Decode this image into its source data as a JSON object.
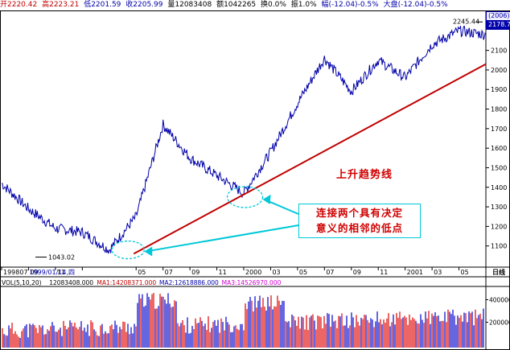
{
  "header": {
    "open": "开2220.42",
    "high": "高2223.21",
    "low": "低2201.59",
    "close": "收2205.99",
    "volume": "量12083408",
    "amount": "额1042265",
    "pct_up": "换0.0%",
    "amplitude": "振1.0%",
    "change": "幅(-12.04)-0.5%",
    "market": "大盘(-12.04)-0.5%"
  },
  "annotations": {
    "trend_title": "上升趋势线",
    "note_line1": "连接两个具有决定",
    "note_line2": "意义的相邻的低点",
    "low_label": "1043.02",
    "high_label": "2245.44",
    "last_price": "2178.77",
    "year_box": "(2006)",
    "date_label": "1999/01/14,四",
    "period": "日线"
  },
  "volume_panel": {
    "title": "VOL(5,10,20)",
    "vol": "12083408.000",
    "ma1": "MA1:14208371.000",
    "ma2": "MA2:12618886.000",
    "ma3": "MA3:14526970.000"
  },
  "colors": {
    "price_line": "#0000aa",
    "trend_line": "#c00000",
    "callout": "#00c8d8",
    "up_bar": "#e00000",
    "down_bar": "#0000cc"
  },
  "chart_data": {
    "type": "line",
    "title": "",
    "xlabel": "",
    "ylabel": "",
    "x": [
      "1998/07",
      "1998/09",
      "1998/11",
      "1999/01",
      "1999/03",
      "1999/05",
      "1999/07",
      "1999/09",
      "1999/11",
      "2000/01",
      "2000/03",
      "2000/05",
      "2000/07",
      "2000/09",
      "2000/11",
      "2001/01",
      "2001/03",
      "2001/05",
      "2001/06"
    ],
    "x_tick_labels": [
      "199807",
      "09",
      "11",
      "1999/01/14,四",
      "05",
      "07",
      "09",
      "11",
      "2000",
      "03",
      "05",
      "07",
      "09",
      "11",
      "2001",
      "03",
      "05",
      "日线"
    ],
    "series": [
      {
        "values": [
          1420,
          1290,
          1190,
          1170,
          1080,
          1250,
          1720,
          1550,
          1460,
          1370,
          1580,
          1830,
          2060,
          1890,
          2050,
          1960,
          2130,
          2200,
          2180
        ]
      }
    ],
    "key_points": {
      "low_1998": 1043.02,
      "high_2001": 2245.44,
      "last": 2178.77
    },
    "trend_line": {
      "from": [
        "1999/05",
        1060
      ],
      "to": [
        "2001/06",
        2030
      ]
    },
    "ylim": [
      1000,
      2300
    ],
    "y_ticks": [
      1100,
      1200,
      1300,
      1400,
      1500,
      1600,
      1700,
      1800,
      1900,
      2000,
      2100
    ],
    "volume_ticks": [
      "400000",
      "200000"
    ],
    "grid": false,
    "legend": "none"
  }
}
